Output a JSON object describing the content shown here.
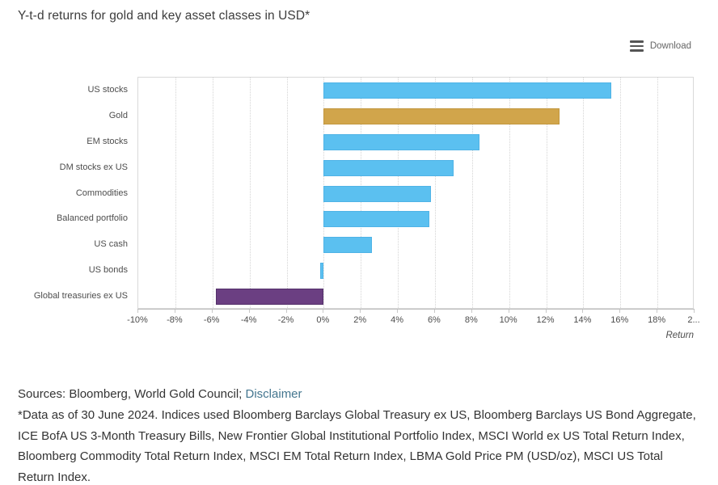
{
  "header": {
    "title": "Y-t-d returns for gold and key asset classes in USD*"
  },
  "toolbar": {
    "download_label": "Download"
  },
  "chart_data": {
    "type": "bar",
    "orientation": "horizontal",
    "title": "Y-t-d returns for gold and key asset classes in USD*",
    "categories": [
      "US stocks",
      "Gold",
      "EM stocks",
      "DM stocks ex US",
      "Commodities",
      "Balanced portfolio",
      "US cash",
      "US bonds",
      "Global treasuries ex US"
    ],
    "values": [
      15.5,
      12.7,
      8.4,
      7.0,
      5.8,
      5.7,
      2.6,
      -0.2,
      -5.8
    ],
    "bar_colors": [
      "#5bc0f0",
      "#d1a54b",
      "#5bc0f0",
      "#5bc0f0",
      "#5bc0f0",
      "#5bc0f0",
      "#5bc0f0",
      "#5bc0f0",
      "#6b3f82"
    ],
    "bar_border_colors": [
      "#4fb3e6",
      "#c2973f",
      "#4fb3e6",
      "#4fb3e6",
      "#4fb3e6",
      "#4fb3e6",
      "#4fb3e6",
      "#4fb3e6",
      "#53306a"
    ],
    "xlabel": "Return",
    "ylabel": "",
    "xlim": [
      -10,
      20
    ],
    "grid": "vertical-dotted",
    "legend": "none",
    "x_ticks": [
      {
        "value": -10,
        "label": "-10%"
      },
      {
        "value": -8,
        "label": "-8%"
      },
      {
        "value": -6,
        "label": "-6%"
      },
      {
        "value": -4,
        "label": "-4%"
      },
      {
        "value": -2,
        "label": "-2%"
      },
      {
        "value": 0,
        "label": "0%"
      },
      {
        "value": 2,
        "label": "2%"
      },
      {
        "value": 4,
        "label": "4%"
      },
      {
        "value": 6,
        "label": "6%"
      },
      {
        "value": 8,
        "label": "8%"
      },
      {
        "value": 10,
        "label": "10%"
      },
      {
        "value": 12,
        "label": "12%"
      },
      {
        "value": 14,
        "label": "14%"
      },
      {
        "value": 16,
        "label": "16%"
      },
      {
        "value": 18,
        "label": "18%"
      },
      {
        "value": 20,
        "label": "2..."
      }
    ]
  },
  "footer": {
    "sources_prefix": "Sources: Bloomberg, World Gold Council; ",
    "disclaimer_link": "Disclaimer",
    "note_lines": [
      "*Data as of 30 June 2024. Indices used Bloomberg Barclays Global Treasury ex US, Bloomberg Barclays US Bond Aggregate,",
      "ICE BofA US 3-Month Treasury Bills, New Frontier Global Institutional Portfolio Index, MSCI World ex US Total Return Index,",
      "Bloomberg Commodity Total Return Index, MSCI EM Total Return Index, LBMA Gold Price PM (USD/oz), MSCI US Total",
      "Return Index."
    ]
  },
  "colors": {
    "blue_bar": "#5bc0f0",
    "gold_bar": "#d1a54b",
    "purple_bar": "#6b3f82",
    "link": "#44768f"
  }
}
